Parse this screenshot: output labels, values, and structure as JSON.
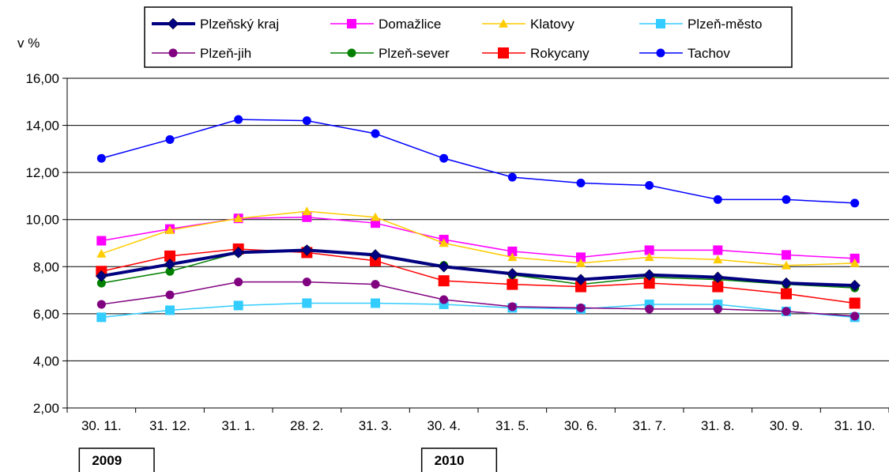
{
  "chart_data": {
    "type": "line",
    "ylabel": "v %",
    "ylim": [
      2,
      16
    ],
    "yticks": [
      "2,00",
      "4,00",
      "6,00",
      "8,00",
      "10,00",
      "12,00",
      "14,00",
      "16,00"
    ],
    "categories": [
      "30. 11.",
      "31. 12.",
      "31. 1.",
      "28. 2.",
      "31. 3.",
      "30. 4.",
      "31. 5.",
      "30. 6.",
      "31. 7.",
      "31. 8.",
      "30. 9.",
      "31. 10."
    ],
    "year_labels": [
      {
        "label": "2009",
        "start_index": 0,
        "end_index": 1
      },
      {
        "label": "2010",
        "start_index": 5,
        "end_index": 6
      }
    ],
    "grid": true,
    "legend_position": "top",
    "series": [
      {
        "name": "Plzeňský kraj",
        "color": "#000080",
        "marker": "diamond",
        "thick": true,
        "values": [
          7.6,
          8.1,
          8.6,
          8.7,
          8.5,
          8.0,
          7.7,
          7.45,
          7.65,
          7.55,
          7.3,
          7.2
        ]
      },
      {
        "name": "Domažlice",
        "color": "#ff00ff",
        "marker": "square",
        "values": [
          9.1,
          9.6,
          10.05,
          10.1,
          9.85,
          9.15,
          8.65,
          8.4,
          8.7,
          8.7,
          8.5,
          8.35
        ]
      },
      {
        "name": "Klatovy",
        "color": "#ffcc00",
        "marker": "triangle",
        "values": [
          8.55,
          9.55,
          10.05,
          10.35,
          10.1,
          9.0,
          8.4,
          8.15,
          8.4,
          8.3,
          8.05,
          8.15
        ]
      },
      {
        "name": "Plzeň-město",
        "color": "#33ccff",
        "marker": "square",
        "values": [
          5.85,
          6.15,
          6.35,
          6.45,
          6.45,
          6.4,
          6.25,
          6.2,
          6.4,
          6.4,
          6.1,
          5.85
        ]
      },
      {
        "name": "Plzeň-jih",
        "color": "#800080",
        "marker": "circle",
        "values": [
          6.4,
          6.8,
          7.35,
          7.35,
          7.25,
          6.6,
          6.3,
          6.25,
          6.2,
          6.2,
          6.1,
          5.9
        ]
      },
      {
        "name": "Plzeň-sever",
        "color": "#008000",
        "marker": "circle",
        "values": [
          7.3,
          7.8,
          8.6,
          8.7,
          8.45,
          8.05,
          7.65,
          7.25,
          7.55,
          7.45,
          7.25,
          7.1
        ]
      },
      {
        "name": "Rokycany",
        "color": "#ff0000",
        "marker": "square",
        "values": [
          7.8,
          8.45,
          8.75,
          8.6,
          8.25,
          7.4,
          7.25,
          7.15,
          7.3,
          7.15,
          6.85,
          6.45
        ]
      },
      {
        "name": "Tachov",
        "color": "#0000ff",
        "marker": "circle",
        "values": [
          12.6,
          13.4,
          14.25,
          14.2,
          13.65,
          12.6,
          11.8,
          11.55,
          11.45,
          10.85,
          10.85,
          10.7
        ]
      }
    ]
  }
}
